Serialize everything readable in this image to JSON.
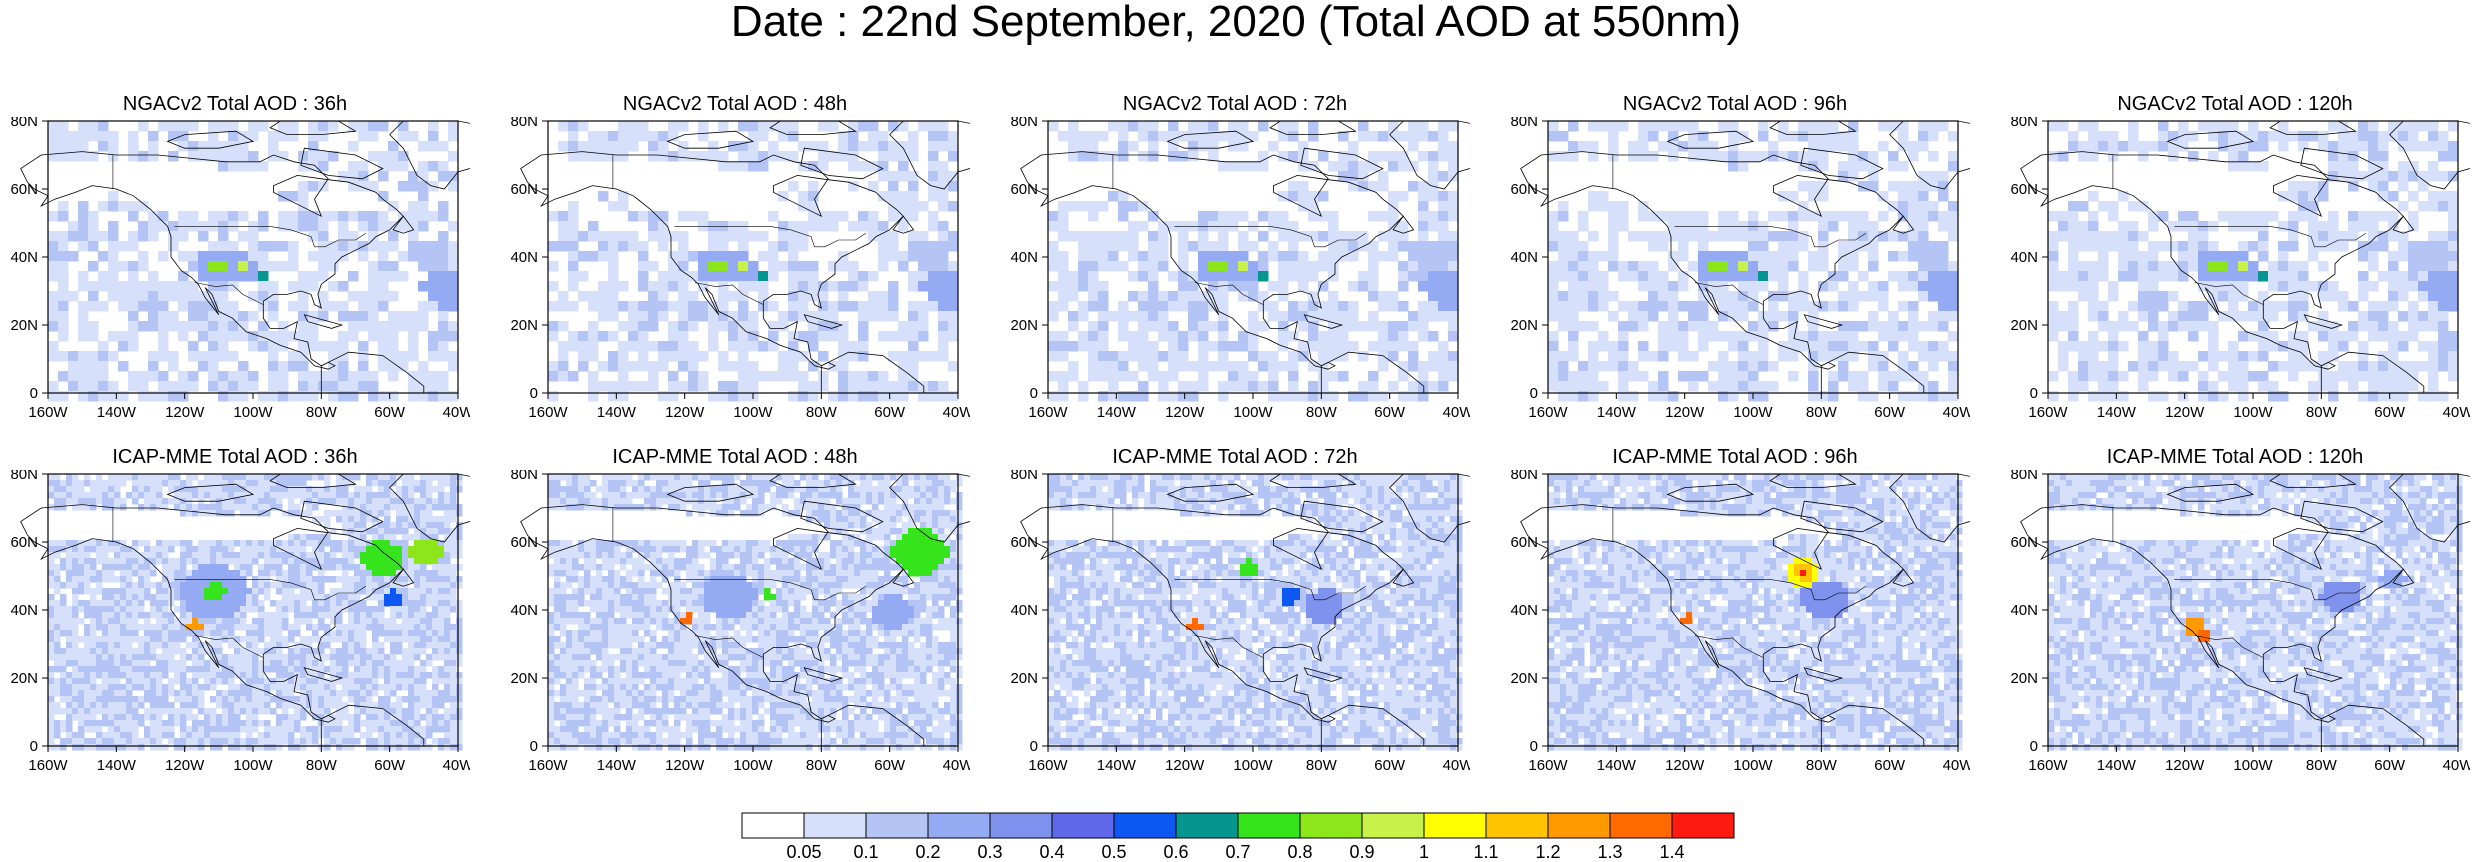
{
  "title": "Date : 22nd September, 2020 (Total AOD at 550nm)",
  "x_ticks": [
    "160W",
    "140W",
    "120W",
    "100W",
    "80W",
    "60W",
    "40W"
  ],
  "y_ticks": [
    "0",
    "20N",
    "40N",
    "60N",
    "80N"
  ],
  "panels": [
    {
      "title": "NGACv2 Total AOD : 36h"
    },
    {
      "title": "NGACv2 Total AOD : 48h"
    },
    {
      "title": "NGACv2 Total AOD : 72h"
    },
    {
      "title": "NGACv2 Total AOD : 96h"
    },
    {
      "title": "NGACv2 Total AOD : 120h"
    },
    {
      "title": "ICAP-MME Total AOD : 36h"
    },
    {
      "title": "ICAP-MME Total AOD : 48h"
    },
    {
      "title": "ICAP-MME Total AOD : 72h"
    },
    {
      "title": "ICAP-MME Total AOD : 96h"
    },
    {
      "title": "ICAP-MME Total AOD : 120h"
    }
  ],
  "colorbar": {
    "labels": [
      "0.05",
      "0.1",
      "0.2",
      "0.3",
      "0.4",
      "0.5",
      "0.6",
      "0.7",
      "0.8",
      "0.9",
      "1",
      "1.1",
      "1.2",
      "1.3",
      "1.4"
    ],
    "colors": [
      "#ffffff",
      "#d7e0fa",
      "#b4c4f5",
      "#94aaf3",
      "#7f92ee",
      "#5e68e8",
      "#0d58f2",
      "#04968f",
      "#36e41b",
      "#8ce61a",
      "#c6f24a",
      "#ffff00",
      "#ffc400",
      "#ff9900",
      "#ff6a00",
      "#ff1a10"
    ]
  }
}
